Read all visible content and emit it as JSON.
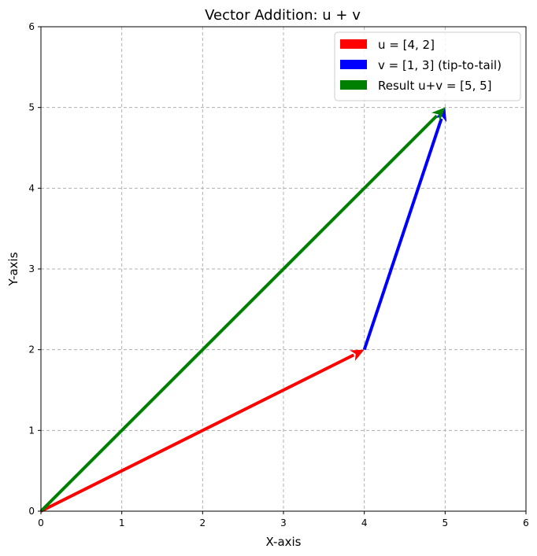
{
  "chart_data": {
    "type": "vector",
    "title": "Vector Addition: u + v",
    "xlabel": "X-axis",
    "ylabel": "Y-axis",
    "xlim": [
      0,
      6
    ],
    "ylim": [
      0,
      6
    ],
    "xticks": [
      "0",
      "1",
      "2",
      "3",
      "4",
      "5",
      "6"
    ],
    "yticks": [
      "0",
      "1",
      "2",
      "3",
      "4",
      "5",
      "6"
    ],
    "grid": true,
    "legend_position": "top-right",
    "series": [
      {
        "name": "u = [4, 2]",
        "color": "#ff0000",
        "start": [
          0,
          0
        ],
        "end": [
          4,
          2
        ]
      },
      {
        "name": "v = [1, 3] (tip-to-tail)",
        "color": "#0000ff",
        "start": [
          4,
          2
        ],
        "end": [
          5,
          5
        ]
      },
      {
        "name": "Result u+v = [5, 5]",
        "color": "#008000",
        "start": [
          0,
          0
        ],
        "end": [
          5,
          5
        ]
      }
    ]
  }
}
